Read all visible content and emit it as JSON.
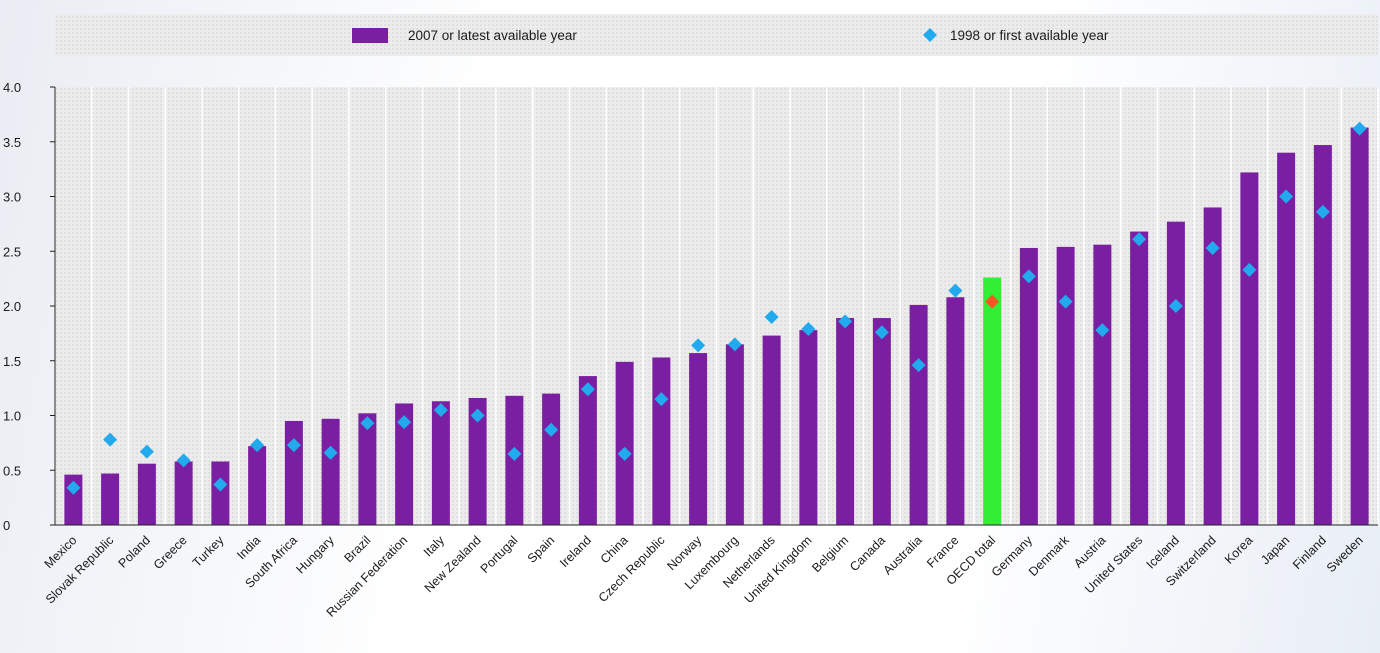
{
  "chart_data": {
    "type": "bar",
    "title": "",
    "xlabel": "",
    "ylabel": "",
    "ylim": [
      0,
      4.0
    ],
    "yticks": [
      "0",
      "0.5",
      "1.0",
      "1.5",
      "2.0",
      "2.5",
      "3.0",
      "3.5",
      "4.0"
    ],
    "ytick_values": [
      0,
      0.5,
      1.0,
      1.5,
      2.0,
      2.5,
      3.0,
      3.5,
      4.0
    ],
    "grid": "vertical dotted columns",
    "legend_placement": "top",
    "categories": [
      "Mexico",
      "Slovak Republic",
      "Poland",
      "Greece",
      "Turkey",
      "India",
      "South Africa",
      "Hungary",
      "Brazil",
      "Russian Federation",
      "Italy",
      "New Zealand",
      "Portugal",
      "Spain",
      "Ireland",
      "China",
      "Czech Republic",
      "Norway",
      "Luxembourg",
      "Netherlands",
      "United Kingdom",
      "Belgium",
      "Canada",
      "Australia",
      "France",
      "OECD total",
      "Germany",
      "Denmark",
      "Austria",
      "United States",
      "Iceland",
      "Switzerland",
      "Korea",
      "Japan",
      "Finland",
      "Sweden"
    ],
    "highlight_category": "OECD total",
    "series": [
      {
        "name": "2007 or latest available year",
        "kind": "bar",
        "color": "#7b1fa2",
        "highlight_color": "#33ee33",
        "values": [
          0.46,
          0.47,
          0.56,
          0.58,
          0.58,
          0.72,
          0.95,
          0.97,
          1.02,
          1.11,
          1.13,
          1.16,
          1.18,
          1.2,
          1.36,
          1.49,
          1.53,
          1.57,
          1.65,
          1.73,
          1.78,
          1.89,
          1.89,
          2.01,
          2.08,
          2.26,
          2.53,
          2.54,
          2.56,
          2.68,
          2.77,
          2.9,
          3.22,
          3.4,
          3.47,
          3.63
        ]
      },
      {
        "name": "1998 or first available year",
        "kind": "diamond",
        "color": "#22aaee",
        "highlight_color": "#ff5522",
        "values": [
          0.34,
          0.78,
          0.67,
          0.59,
          0.37,
          0.73,
          0.73,
          0.66,
          0.93,
          0.94,
          1.05,
          1.0,
          0.65,
          0.87,
          1.24,
          0.65,
          1.15,
          1.64,
          1.65,
          1.9,
          1.79,
          1.86,
          1.76,
          1.46,
          2.14,
          2.04,
          2.27,
          2.04,
          1.78,
          2.61,
          2.0,
          2.53,
          2.33,
          3.0,
          2.86,
          3.62
        ]
      }
    ]
  }
}
